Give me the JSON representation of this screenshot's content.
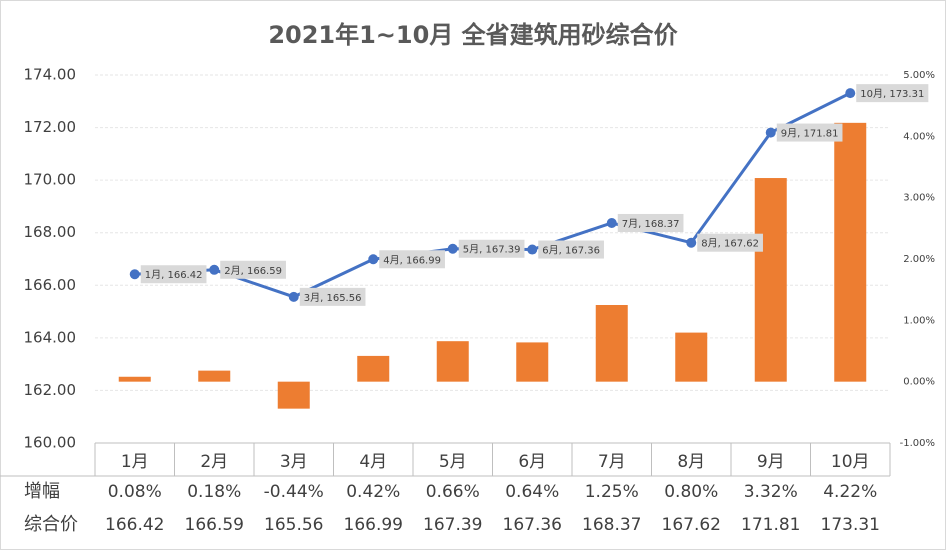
{
  "chart_data": {
    "type": "bar-line-table",
    "title": "2021年1~10月 全省建筑用砂综合价",
    "categories": [
      "1月",
      "2月",
      "3月",
      "4月",
      "5月",
      "6月",
      "7月",
      "8月",
      "9月",
      "10月"
    ],
    "series": [
      {
        "name": "增幅",
        "type": "bar",
        "axis": "y2",
        "color": "#ed7d31",
        "values": [
          0.08,
          0.18,
          -0.44,
          0.42,
          0.66,
          0.64,
          1.25,
          0.8,
          3.32,
          4.22
        ],
        "value_labels": [
          "0.08%",
          "0.18%",
          "-0.44%",
          "0.42%",
          "0.66%",
          "0.64%",
          "1.25%",
          "0.80%",
          "3.32%",
          "4.22%"
        ]
      },
      {
        "name": "综合价",
        "type": "line",
        "color": "#4472c4",
        "values": [
          166.42,
          166.59,
          165.56,
          166.99,
          167.39,
          167.36,
          168.37,
          167.62,
          171.81,
          173.31
        ],
        "value_labels": [
          "1月, 166.42",
          "2月, 166.59",
          "3月, 165.56",
          "4月, 166.99",
          "5月, 167.39",
          "6月, 167.36",
          "7月, 168.37",
          "8月, 167.62",
          "9月, 171.81",
          "10月, 173.31"
        ]
      }
    ],
    "ylim": [
      160,
      174
    ],
    "yticks": [
      {
        "value": 160,
        "label": "160.00"
      },
      {
        "value": 162,
        "label": "162.00"
      },
      {
        "value": 164,
        "label": "164.00"
      },
      {
        "value": 166,
        "label": "166.00"
      },
      {
        "value": 168,
        "label": "168.00"
      },
      {
        "value": 170,
        "label": "170.00"
      },
      {
        "value": 172,
        "label": "172.00"
      },
      {
        "value": 174,
        "label": "174.00"
      }
    ],
    "y2lim": [
      -1,
      5
    ],
    "y2ticks": [
      {
        "value": -1,
        "label": "-1.00%"
      },
      {
        "value": 0,
        "label": "0.00%"
      },
      {
        "value": 1,
        "label": "1.00%"
      },
      {
        "value": 2,
        "label": "2.00%"
      },
      {
        "value": 3,
        "label": "3.00%"
      },
      {
        "value": 4,
        "label": "4.00%"
      },
      {
        "value": 5,
        "label": "5.00%"
      }
    ],
    "grid": true
  }
}
